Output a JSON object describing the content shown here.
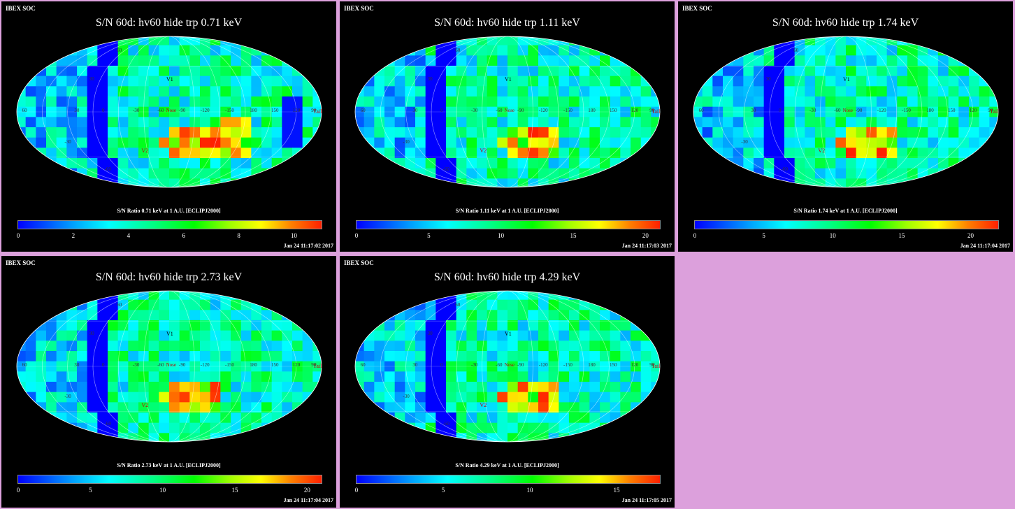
{
  "organization": "IBEX SOC",
  "colorbar_colors": [
    "#0000ff",
    "#00a0ff",
    "#00ffff",
    "#00ff80",
    "#00ff00",
    "#a0ff00",
    "#ffff00",
    "#ff8000",
    "#ff2000"
  ],
  "map_labels": {
    "v1": "V1",
    "v2": "V2",
    "nose": "Nose",
    "tail": "Tail",
    "lon": [
      "60",
      "30",
      "0",
      "-30",
      "-60",
      "-90",
      "-120",
      "-150",
      "180",
      "150",
      "120",
      "90"
    ],
    "lat": [
      "60",
      "30",
      "-30",
      "-60"
    ]
  },
  "panels": [
    {
      "title": "S/N  60d: hv60 hide trp 0.71 keV",
      "label": "S/N Ratio 0.71 keV at 1 A.U. [ECLIPJ2000]",
      "ticks": [
        "0",
        "2",
        "4",
        "6",
        "8",
        "10"
      ],
      "date": "Jan 24 11:17:02 2017",
      "vmax": 11
    },
    {
      "title": "S/N  60d: hv60 hide trp 1.11 keV",
      "label": "S/N Ratio 1.11 keV at 1 A.U. [ECLIPJ2000]",
      "ticks": [
        "0",
        "5",
        "10",
        "15",
        "20"
      ],
      "date": "Jan 24 11:17:03 2017",
      "vmax": 21
    },
    {
      "title": "S/N  60d: hv60 hide trp 1.74 keV",
      "label": "S/N Ratio 1.74 keV at 1 A.U. [ECLIPJ2000]",
      "ticks": [
        "0",
        "5",
        "10",
        "15",
        "20"
      ],
      "date": "Jan 24 11:17:04 2017",
      "vmax": 22
    },
    {
      "title": "S/N  60d: hv60 hide trp 2.73 keV",
      "label": "S/N Ratio 2.73 keV at 1 A.U. [ECLIPJ2000]",
      "ticks": [
        "0",
        "5",
        "10",
        "15",
        "20"
      ],
      "date": "Jan 24 11:17:04 2017",
      "vmax": 21
    },
    {
      "title": "S/N  60d: hv60 hide trp 4.29 keV",
      "label": "S/N Ratio 4.29 keV at 1 A.U. [ECLIPJ2000]",
      "ticks": [
        "0",
        "5",
        "10",
        "15"
      ],
      "date": "Jan 24 11:17:05 2017",
      "vmax": 17.5
    }
  ]
}
